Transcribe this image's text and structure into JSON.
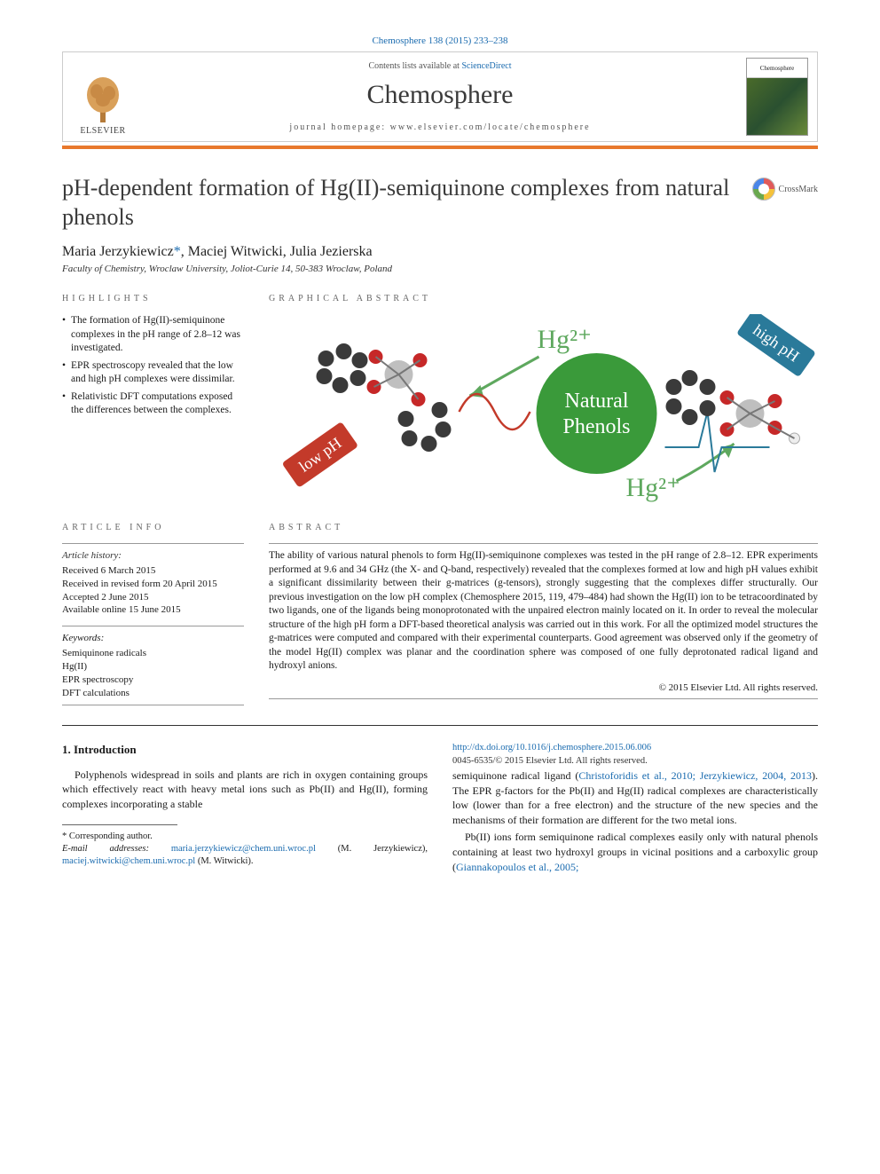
{
  "citation": "Chemosphere 138 (2015) 233–238",
  "publisher_name": "ELSEVIER",
  "contents_prefix": "Contents lists available at ",
  "contents_link": "ScienceDirect",
  "journal_title": "Chemosphere",
  "homepage_label": "journal homepage: www.elsevier.com/locate/chemosphere",
  "cover_label": "Chemosphere",
  "crossmark_label": "CrossMark",
  "title": "pH-dependent formation of Hg(II)-semiquinone complexes from natural phenols",
  "authors_html": "Maria Jerzykiewicz",
  "author2": ", Maciej Witwicki, Julia Jezierska",
  "corr_mark": "*",
  "affiliation": "Faculty of Chemistry, Wroclaw University, Joliot-Curie 14, 50-383 Wroclaw, Poland",
  "labels": {
    "highlights": "HIGHLIGHTS",
    "graphical_abstract": "GRAPHICAL ABSTRACT",
    "article_info": "ARTICLE INFO",
    "abstract": "ABSTRACT"
  },
  "highlights": [
    "The formation of Hg(II)-semiquinone complexes in the pH range of 2.8–12 was investigated.",
    "EPR spectroscopy revealed that the low and high pH complexes were dissimilar.",
    "Relativistic DFT computations exposed the differences between the complexes."
  ],
  "graphical_abstract": {
    "center_line1": "Natural",
    "center_line2": "Phenols",
    "hg_top": "Hg²⁺",
    "hg_bottom": "Hg²⁺",
    "low_badge": "low pH",
    "high_badge": "high pH",
    "colors": {
      "center_circle": "#3a9a3a",
      "center_text": "#ffffff",
      "hg_top": "#5ea85e",
      "hg_bottom": "#5ea85e",
      "low_badge_bg": "#c33a2a",
      "high_badge_bg": "#2a7a9a",
      "badge_text": "#ffffff",
      "wave": "#c33a2a",
      "atom_gray": "#bfbfbf",
      "atom_dark": "#3a3a3a",
      "atom_red": "#c62828"
    }
  },
  "article_info": {
    "history_head": "Article history:",
    "received": "Received 6 March 2015",
    "revised": "Received in revised form 20 April 2015",
    "accepted": "Accepted 2 June 2015",
    "online": "Available online 15 June 2015",
    "keywords_head": "Keywords:",
    "keywords": [
      "Semiquinone radicals",
      "Hg(II)",
      "EPR spectroscopy",
      "DFT calculations"
    ]
  },
  "abstract_text": "The ability of various natural phenols to form Hg(II)-semiquinone complexes was tested in the pH range of 2.8–12. EPR experiments performed at 9.6 and 34 GHz (the X- and Q-band, respectively) revealed that the complexes formed at low and high pH values exhibit a significant dissimilarity between their g-matrices (g-tensors), strongly suggesting that the complexes differ structurally. Our previous investigation on the low pH complex (Chemosphere 2015, 119, 479–484) had shown the Hg(II) ion to be tetracoordinated by two ligands, one of the ligands being monoprotonated with the unpaired electron mainly located on it. In order to reveal the molecular structure of the high pH form a DFT-based theoretical analysis was carried out in this work. For all the optimized model structures the g-matrices were computed and compared with their experimental counterparts. Good agreement was observed only if the geometry of the model Hg(II) complex was planar and the coordination sphere was composed of one fully deprotonated radical ligand and hydroxyl anions.",
  "copyright": "© 2015 Elsevier Ltd. All rights reserved.",
  "intro_head": "1. Introduction",
  "intro_p1": "Polyphenols widespread in soils and plants are rich in oxygen containing groups which effectively react with heavy metal ions such as Pb(II) and Hg(II), forming complexes incorporating a stable",
  "intro_p2a": "semiquinone radical ligand (",
  "intro_ref1": "Christoforidis et al., 2010; Jerzykiewicz, 2004, 2013",
  "intro_p2b": "). The EPR g-factors for the Pb(II) and Hg(II) radical complexes are characteristically low (lower than for a free electron) and the structure of the new species and the mechanisms of their formation are different for the two metal ions.",
  "intro_p3a": "Pb(II) ions form semiquinone radical complexes easily only with natural phenols containing at least two hydroxyl groups in vicinal positions and a carboxylic group (",
  "intro_ref2": "Giannakopoulos et al., 2005;",
  "footnote_corr": "* Corresponding author.",
  "footnote_email_label": "E-mail addresses: ",
  "footnote_email1": "maria.jerzykiewicz@chem.uni.wroc.pl",
  "footnote_email1_who": " (M. Jerzykiewicz), ",
  "footnote_email2": "maciej.witwicki@chem.uni.wroc.pl",
  "footnote_email2_who": " (M. Witwicki).",
  "doi": "http://dx.doi.org/10.1016/j.chemosphere.2015.06.006",
  "issn": "0045-6535/© 2015 Elsevier Ltd. All rights reserved."
}
